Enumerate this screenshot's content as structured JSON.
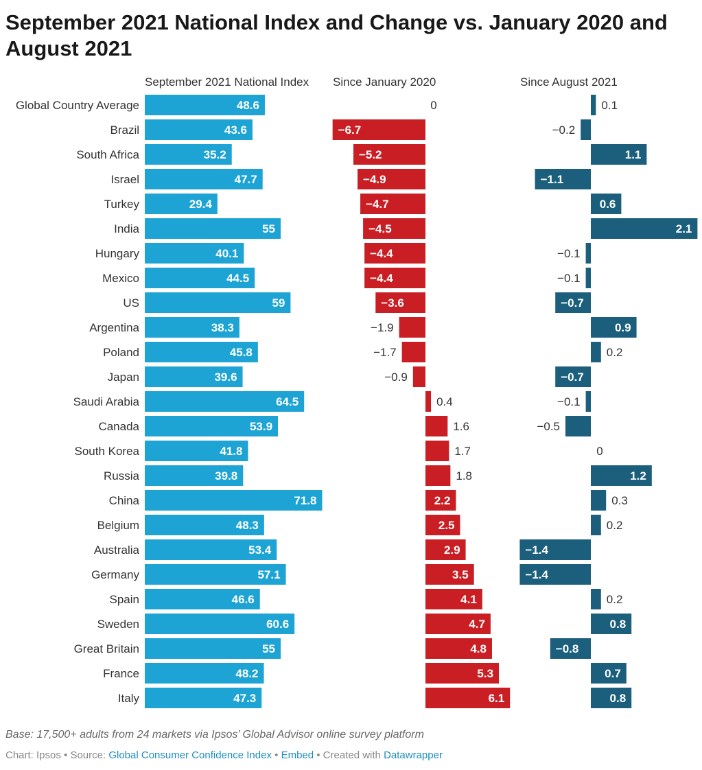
{
  "title": "September 2021 National Index and Change vs. January 2020 and August 2021",
  "footer": {
    "base_note": "Base: 17,500+ adults from 24 markets via Ipsos’ Global Advisor online survey platform",
    "chart_prefix": "Chart: Ipsos • Source: ",
    "source_link": "Global Consumer Confidence Index",
    "sep1": " • ",
    "embed_link": "Embed",
    "created_with": " • Created with ",
    "datawrapper_link": "Datawrapper"
  },
  "colors": {
    "index": "#1da4d4",
    "jan_change": "#c91f24",
    "aug_change": "#1b5f7c",
    "label_dark": "#333333",
    "label_on_bar": "#ffffff"
  },
  "chart_data": {
    "type": "bar",
    "categories": [
      "Global Country Average",
      "Brazil",
      "South Africa",
      "Israel",
      "Turkey",
      "India",
      "Hungary",
      "Mexico",
      "US",
      "Argentina",
      "Poland",
      "Japan",
      "Saudi Arabia",
      "Canada",
      "South Korea",
      "Russia",
      "China",
      "Belgium",
      "Australia",
      "Germany",
      "Spain",
      "Sweden",
      "Great Britain",
      "France",
      "Italy"
    ],
    "series": [
      {
        "name": "September 2021 National Index",
        "values": [
          48.6,
          43.6,
          35.2,
          47.7,
          29.4,
          55,
          40.1,
          44.5,
          59,
          38.3,
          45.8,
          39.6,
          64.5,
          53.9,
          41.8,
          39.8,
          71.8,
          48.3,
          53.4,
          57.1,
          46.6,
          60.6,
          55,
          48.2,
          47.3
        ],
        "labels": [
          "48.6",
          "43.6",
          "35.2",
          "47.7",
          "29.4",
          "55",
          "40.1",
          "44.5",
          "59",
          "38.3",
          "45.8",
          "39.6",
          "64.5",
          "53.9",
          "41.8",
          "39.8",
          "71.8",
          "48.3",
          "53.4",
          "57.1",
          "46.6",
          "60.6",
          "55",
          "48.2",
          "47.3"
        ]
      },
      {
        "name": "Since January 2020",
        "values": [
          0,
          -6.7,
          -5.2,
          -4.9,
          -4.7,
          -4.5,
          -4.4,
          -4.4,
          -3.6,
          -1.9,
          -1.7,
          -0.9,
          0.4,
          1.6,
          1.7,
          1.8,
          2.2,
          2.5,
          2.9,
          3.5,
          4.1,
          4.7,
          4.8,
          5.3,
          6.1
        ],
        "labels": [
          "0",
          "−6.7",
          "−5.2",
          "−4.9",
          "−4.7",
          "−4.5",
          "−4.4",
          "−4.4",
          "−3.6",
          "−1.9",
          "−1.7",
          "−0.9",
          "0.4",
          "1.6",
          "1.7",
          "1.8",
          "2.2",
          "2.5",
          "2.9",
          "3.5",
          "4.1",
          "4.7",
          "4.8",
          "5.3",
          "6.1"
        ]
      },
      {
        "name": "Since August 2021",
        "values": [
          0.1,
          -0.2,
          1.1,
          -1.1,
          0.6,
          2.1,
          -0.1,
          -0.1,
          -0.7,
          0.9,
          0.2,
          -0.7,
          -0.1,
          -0.5,
          0,
          1.2,
          0.3,
          0.2,
          -1.4,
          -1.4,
          0.2,
          0.8,
          -0.8,
          0.7,
          0.8
        ],
        "labels": [
          "0.1",
          "−0.2",
          "1.1",
          "−1.1",
          "0.6",
          "2.1",
          "−0.1",
          "−0.1",
          "−0.7",
          "0.9",
          "0.2",
          "−0.7",
          "−0.1",
          "−0.5",
          "0",
          "1.2",
          "0.3",
          "0.2",
          "−1.4",
          "−1.4",
          "0.2",
          "0.8",
          "−0.8",
          "0.7",
          "0.8"
        ]
      }
    ],
    "xlabel": "",
    "ylabel": ""
  }
}
